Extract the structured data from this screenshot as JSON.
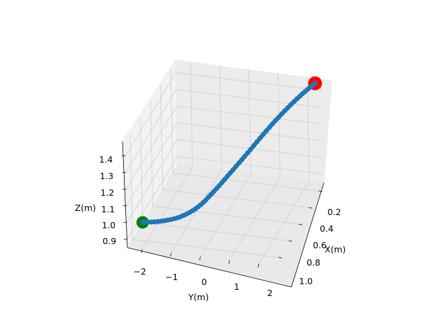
{
  "chart_data": {
    "type": "line3d",
    "title": "",
    "axes": {
      "x": {
        "label": "X(m)",
        "ticks": [
          "0.2",
          "0.4",
          "0.6",
          "0.8",
          "1.0"
        ]
      },
      "y": {
        "label": "Y(m)",
        "ticks": [
          "−2",
          "−1",
          "0",
          "1",
          "2"
        ]
      },
      "z": {
        "label": "Z(m)",
        "ticks": [
          "0.9",
          "1.0",
          "1.1",
          "1.2",
          "1.3",
          "1.4"
        ]
      }
    },
    "grid": true,
    "series": [
      {
        "color": "#1f77b4",
        "marker": "circle",
        "points": [
          {
            "x": 1.02,
            "y": -2.1,
            "z": 0.97
          },
          {
            "x": 1.0,
            "y": -1.5,
            "z": 0.98
          },
          {
            "x": 0.96,
            "y": -0.9,
            "z": 1.0
          },
          {
            "x": 0.9,
            "y": -0.4,
            "z": 1.04
          },
          {
            "x": 0.82,
            "y": 0.0,
            "z": 1.1
          },
          {
            "x": 0.72,
            "y": 0.4,
            "z": 1.17
          },
          {
            "x": 0.6,
            "y": 0.8,
            "z": 1.24
          },
          {
            "x": 0.46,
            "y": 1.2,
            "z": 1.31
          },
          {
            "x": 0.32,
            "y": 1.6,
            "z": 1.37
          },
          {
            "x": 0.2,
            "y": 2.0,
            "z": 1.42
          },
          {
            "x": 0.12,
            "y": 2.3,
            "z": 1.45
          }
        ]
      }
    ],
    "start_marker": {
      "color": "#008000",
      "x": 1.02,
      "y": -2.1,
      "z": 0.97
    },
    "end_marker": {
      "color": "#ff0000",
      "x": 0.12,
      "y": 2.3,
      "z": 1.45
    }
  }
}
